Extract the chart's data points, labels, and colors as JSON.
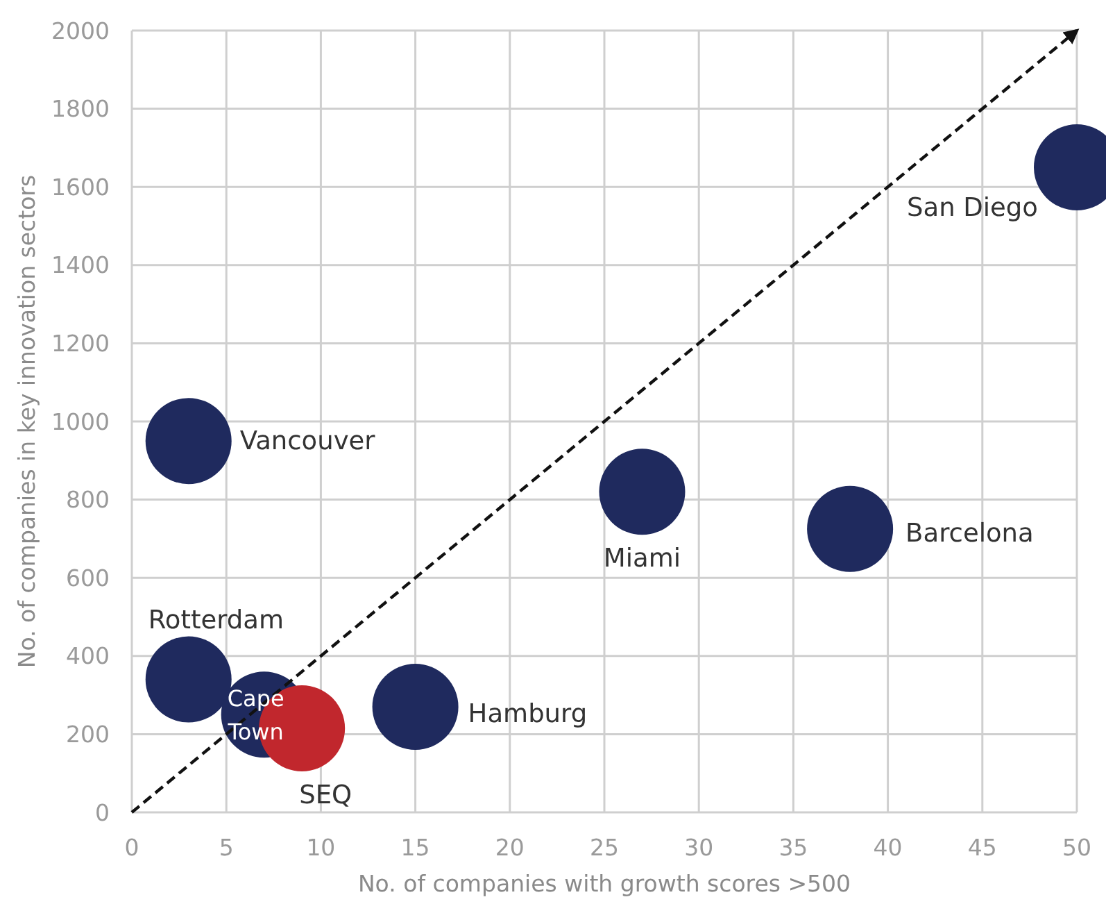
{
  "chart_data": {
    "type": "scatter",
    "xlabel": "No. of companies with growth scores >500",
    "ylabel": "No. of companies in key innovation sectors",
    "xlim": [
      0,
      50
    ],
    "xticks": [
      0,
      5,
      10,
      15,
      20,
      25,
      30,
      35,
      40,
      45,
      50
    ],
    "ylim": [
      0,
      2000
    ],
    "yticks": [
      0,
      200,
      400,
      600,
      800,
      1000,
      1200,
      1400,
      1600,
      1800,
      2000
    ],
    "grid": true,
    "marker": "circle",
    "series": [
      {
        "name": "Vancouver",
        "color": "#1f2a5e",
        "x": [
          3
        ],
        "values": [
          950
        ]
      },
      {
        "name": "San Diego",
        "color": "#1f2a5e",
        "x": [
          50
        ],
        "values": [
          1650
        ]
      },
      {
        "name": "Miami",
        "color": "#1f2a5e",
        "x": [
          27
        ],
        "values": [
          820
        ]
      },
      {
        "name": "Barcelona",
        "color": "#1f2a5e",
        "x": [
          38
        ],
        "values": [
          725
        ]
      },
      {
        "name": "Rotterdam",
        "color": "#1f2a5e",
        "x": [
          3
        ],
        "values": [
          340
        ]
      },
      {
        "name": "Hamburg",
        "color": "#1f2a5e",
        "x": [
          15
        ],
        "values": [
          270
        ]
      },
      {
        "name": "Cape Town",
        "color": "#1f2a5e",
        "x": [
          7
        ],
        "values": [
          250
        ]
      },
      {
        "name": "SEQ",
        "color": "#c1272d",
        "x": [
          9
        ],
        "values": [
          215
        ]
      },
      {
        "type": "line",
        "color": "#111111",
        "x": [
          0,
          50
        ],
        "values": [
          0,
          2000
        ],
        "line_style": "dashed",
        "marker": "none"
      }
    ]
  }
}
